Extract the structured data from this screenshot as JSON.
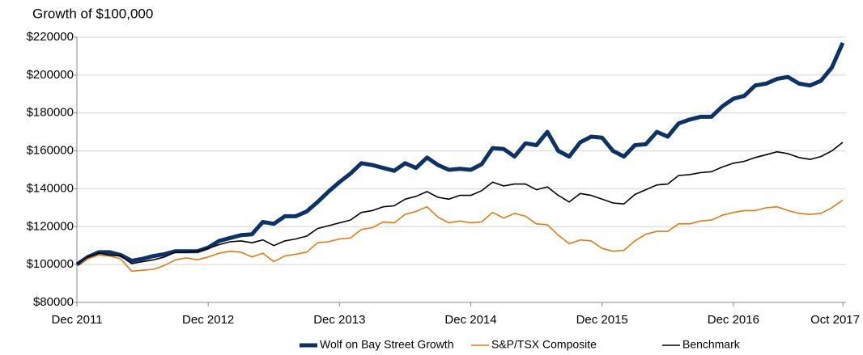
{
  "chart_data": {
    "type": "line",
    "title": "Growth of $100,000",
    "categories": [
      "Dec 2011",
      null,
      null,
      null,
      null,
      null,
      null,
      null,
      null,
      null,
      null,
      null,
      "Dec 2012",
      null,
      null,
      null,
      null,
      null,
      null,
      null,
      null,
      null,
      null,
      null,
      "Dec 2013",
      null,
      null,
      null,
      null,
      null,
      null,
      null,
      null,
      null,
      null,
      null,
      "Dec 2014",
      null,
      null,
      null,
      null,
      null,
      null,
      null,
      null,
      null,
      null,
      null,
      "Dec 2015",
      null,
      null,
      null,
      null,
      null,
      null,
      null,
      null,
      null,
      null,
      null,
      "Dec 2016",
      null,
      null,
      null,
      null,
      null,
      null,
      null,
      null,
      null,
      "Oct 2017"
    ],
    "series": [
      {
        "name": "Wolf on Bay Street Growth",
        "color": "#0d3266",
        "values": [
          100000,
          104000,
          106500,
          106500,
          105000,
          102000,
          103000,
          104500,
          105500,
          107000,
          107000,
          107000,
          109000,
          112500,
          114000,
          115500,
          116000,
          122500,
          121500,
          125500,
          125500,
          128000,
          133000,
          138500,
          143500,
          148000,
          153500,
          152500,
          151000,
          149500,
          153500,
          151000,
          156500,
          152500,
          150000,
          150500,
          150000,
          153000,
          161500,
          161000,
          157000,
          164000,
          163000,
          170000,
          160000,
          157000,
          164500,
          167500,
          167000,
          160000,
          157000,
          163000,
          163500,
          170000,
          167500,
          174500,
          176500,
          178000,
          178000,
          183500,
          187500,
          189000,
          194500,
          195500,
          198000,
          199000,
          195500,
          194500,
          197000,
          204000,
          217000
        ]
      },
      {
        "name": "S&P/TSX Composite",
        "color": "#e07b10",
        "values": [
          100000,
          103000,
          105000,
          104500,
          103000,
          96500,
          97000,
          97500,
          99500,
          102500,
          103500,
          102500,
          104000,
          106000,
          107000,
          106500,
          104000,
          106000,
          101500,
          104500,
          105500,
          106500,
          111500,
          112000,
          113500,
          114000,
          118500,
          119500,
          122500,
          122000,
          126500,
          128000,
          130500,
          125000,
          122000,
          123000,
          122000,
          122500,
          127500,
          124500,
          127000,
          125500,
          121500,
          121000,
          115500,
          111000,
          113000,
          112500,
          108500,
          107000,
          107500,
          112500,
          116000,
          117500,
          117500,
          121500,
          121500,
          123000,
          123500,
          126000,
          127500,
          128500,
          128500,
          130000,
          130500,
          128500,
          127000,
          126500,
          127000,
          130000,
          134000
        ]
      },
      {
        "name": "Benchmark",
        "color": "#000000",
        "values": [
          100000,
          104000,
          106000,
          105000,
          104500,
          100500,
          101500,
          102500,
          104000,
          106500,
          106500,
          107000,
          108500,
          110500,
          112000,
          112500,
          111500,
          113000,
          110000,
          112500,
          113500,
          115000,
          119000,
          120500,
          122000,
          123500,
          127500,
          128500,
          130500,
          131000,
          134500,
          136000,
          138500,
          135500,
          134500,
          136500,
          136500,
          139000,
          143500,
          141500,
          142500,
          142500,
          139500,
          141000,
          136500,
          133000,
          137500,
          136500,
          134500,
          132500,
          132000,
          137000,
          139500,
          142000,
          142500,
          147000,
          147500,
          148500,
          149000,
          151500,
          153500,
          154500,
          156500,
          158000,
          159500,
          158500,
          156500,
          155500,
          157000,
          160000,
          164500
        ]
      }
    ],
    "ylim": [
      80000,
      220000
    ],
    "yticks": [
      {
        "value": 80000,
        "label": "$80000"
      },
      {
        "value": 100000,
        "label": "$100000"
      },
      {
        "value": 120000,
        "label": "$120000"
      },
      {
        "value": 140000,
        "label": "$140000"
      },
      {
        "value": 160000,
        "label": "$160000"
      },
      {
        "value": 180000,
        "label": "$180000"
      },
      {
        "value": 200000,
        "label": "$200000"
      },
      {
        "value": 220000,
        "label": "$220000"
      }
    ],
    "grid": true,
    "legend": "bottom"
  }
}
